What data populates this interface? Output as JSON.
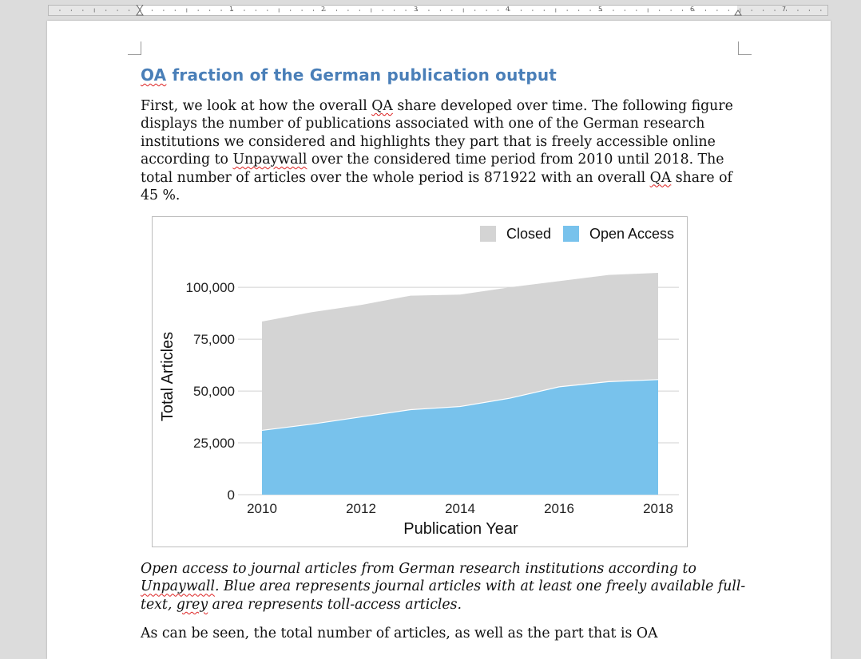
{
  "ruler": {
    "numbers": [
      "1",
      "2",
      "3",
      "4",
      "5",
      "6",
      "7"
    ]
  },
  "document": {
    "heading_word1": "OA",
    "heading_rest": " fraction of the German publication output",
    "para1": {
      "t1": "First, we look at how the overall ",
      "oa1": "QA",
      "t2": " share developed over time. The following figure displays the number of publications associated with one of the German research institutions we considered and highlights they part that is freely accessible online according to ",
      "unpaywall": "Unpaywall",
      "t3": " over the considered time period from 2010 until 2018. The total number of articles over the whole period is 871922 with an overall ",
      "oa2": "QA",
      "t4": " share of 45 %."
    },
    "caption": {
      "t1": "Open access to journal articles from German research institutions according to ",
      "unpaywall": "Unpaywall",
      "t2": ". Blue area represents journal articles with at least one freely available full-text, ",
      "grey": "grey",
      "t3": " area represents toll-access articles."
    },
    "cut_line": "As can be seen, the total number of articles, as well as the part that is OA"
  },
  "colors": {
    "closed": "#d4d4d4",
    "open_access": "#78c2ec",
    "heading": "#4a7fb8"
  },
  "chart_data": {
    "type": "area",
    "stacked": true,
    "x": [
      2010,
      2011,
      2012,
      2013,
      2014,
      2015,
      2016,
      2017,
      2018
    ],
    "series": [
      {
        "name": "Open Access",
        "values": [
          31000,
          34000,
          37500,
          41000,
          42500,
          46500,
          52000,
          54500,
          55500
        ]
      },
      {
        "name": "Closed",
        "values": [
          52500,
          54000,
          54000,
          55000,
          54000,
          53500,
          51000,
          51500,
          51500
        ]
      }
    ],
    "xlabel": "Publication Year",
    "ylabel": "Total Articles",
    "xticks": [
      "2010",
      "2012",
      "2014",
      "2016",
      "2018"
    ],
    "yticks": [
      "0",
      "25,000",
      "50,000",
      "75,000",
      "100,000"
    ],
    "ylim": [
      0,
      107000
    ],
    "legend": [
      "Closed",
      "Open Access"
    ],
    "legend_position": "top-right",
    "grid": true
  }
}
